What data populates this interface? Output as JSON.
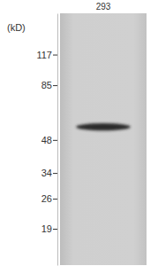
{
  "chart_data": {
    "type": "blot",
    "y_label": "(kD)",
    "categories": [
      "293"
    ],
    "values": [
      55
    ],
    "color": "#2a2a2a",
    "log": "y",
    "ylim": [
      13,
      180
    ],
    "yticks": [
      117,
      85,
      48,
      34,
      26,
      19
    ]
  }
}
